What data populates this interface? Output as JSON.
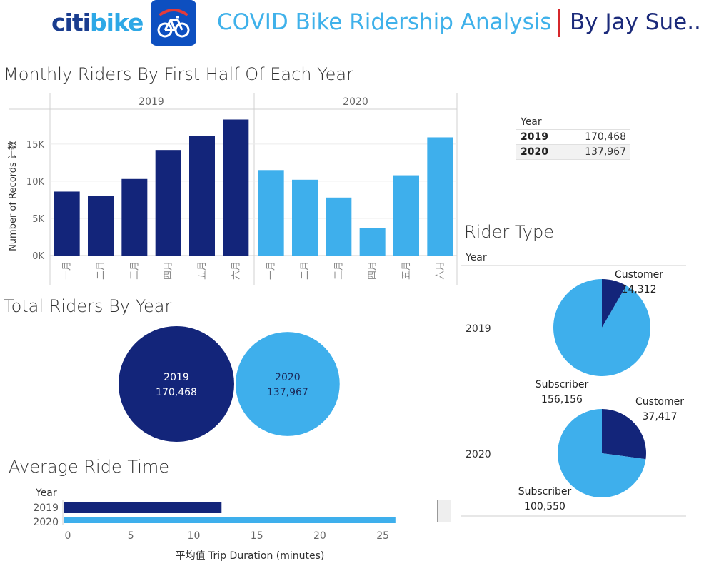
{
  "header": {
    "brand_part1": "citi",
    "brand_part2": "bike",
    "title": "COVID Bike Ridership Analysis",
    "author": "By Jay Sue.."
  },
  "colors": {
    "y2019": "#13257a",
    "y2020": "#3eafec",
    "accent_red": "#d6272b"
  },
  "icons": {
    "app": "bicycle-icon"
  },
  "chart_data": [
    {
      "id": "monthly",
      "type": "bar",
      "title": "Monthly Riders By First Half Of Each Year",
      "ylabel": "Number of Records 计数",
      "ylim": [
        0,
        19500
      ],
      "yticks": [
        0,
        5000,
        10000,
        15000
      ],
      "ytick_labels": [
        "0K",
        "5K",
        "10K",
        "15K"
      ],
      "panels": [
        {
          "name": "2019",
          "categories": [
            "一月",
            "二月",
            "三月",
            "四月",
            "五月",
            "六月"
          ],
          "values": [
            8600,
            8000,
            10300,
            14200,
            16100,
            18300
          ]
        },
        {
          "name": "2020",
          "categories": [
            "一月",
            "二月",
            "三月",
            "四月",
            "五月",
            "六月"
          ],
          "values": [
            11500,
            10200,
            7800,
            3700,
            10800,
            15900
          ]
        }
      ]
    },
    {
      "id": "year_table",
      "type": "table",
      "columns": [
        "Year",
        ""
      ],
      "rows": [
        [
          "2019",
          "170,468"
        ],
        [
          "2020",
          "137,967"
        ]
      ]
    },
    {
      "id": "total",
      "type": "bubble",
      "title": "Total Riders By Year",
      "items": [
        {
          "year": "2019",
          "value": 170468,
          "label": "170,468"
        },
        {
          "year": "2020",
          "value": 137967,
          "label": "137,967"
        }
      ]
    },
    {
      "id": "rider_type",
      "type": "pie",
      "title": "Rider Type",
      "row_header": "Year",
      "rows": [
        {
          "year": "2019",
          "slices": [
            {
              "name": "Customer",
              "value": 14312,
              "label": "14,312"
            },
            {
              "name": "Subscriber",
              "value": 156156,
              "label": "156,156"
            }
          ]
        },
        {
          "year": "2020",
          "slices": [
            {
              "name": "Customer",
              "value": 37417,
              "label": "37,417"
            },
            {
              "name": "Subscriber",
              "value": 100550,
              "label": "100,550"
            }
          ]
        }
      ]
    },
    {
      "id": "avg_ride",
      "type": "bar",
      "orientation": "horizontal",
      "title": "Average Ride Time",
      "row_header": "Year",
      "categories": [
        "2019",
        "2020"
      ],
      "values": [
        12.2,
        26.0
      ],
      "xlim": [
        0,
        27
      ],
      "xticks": [
        0,
        5,
        10,
        15,
        20,
        25
      ],
      "xlabel": "平均值 Trip Duration (minutes)"
    }
  ]
}
